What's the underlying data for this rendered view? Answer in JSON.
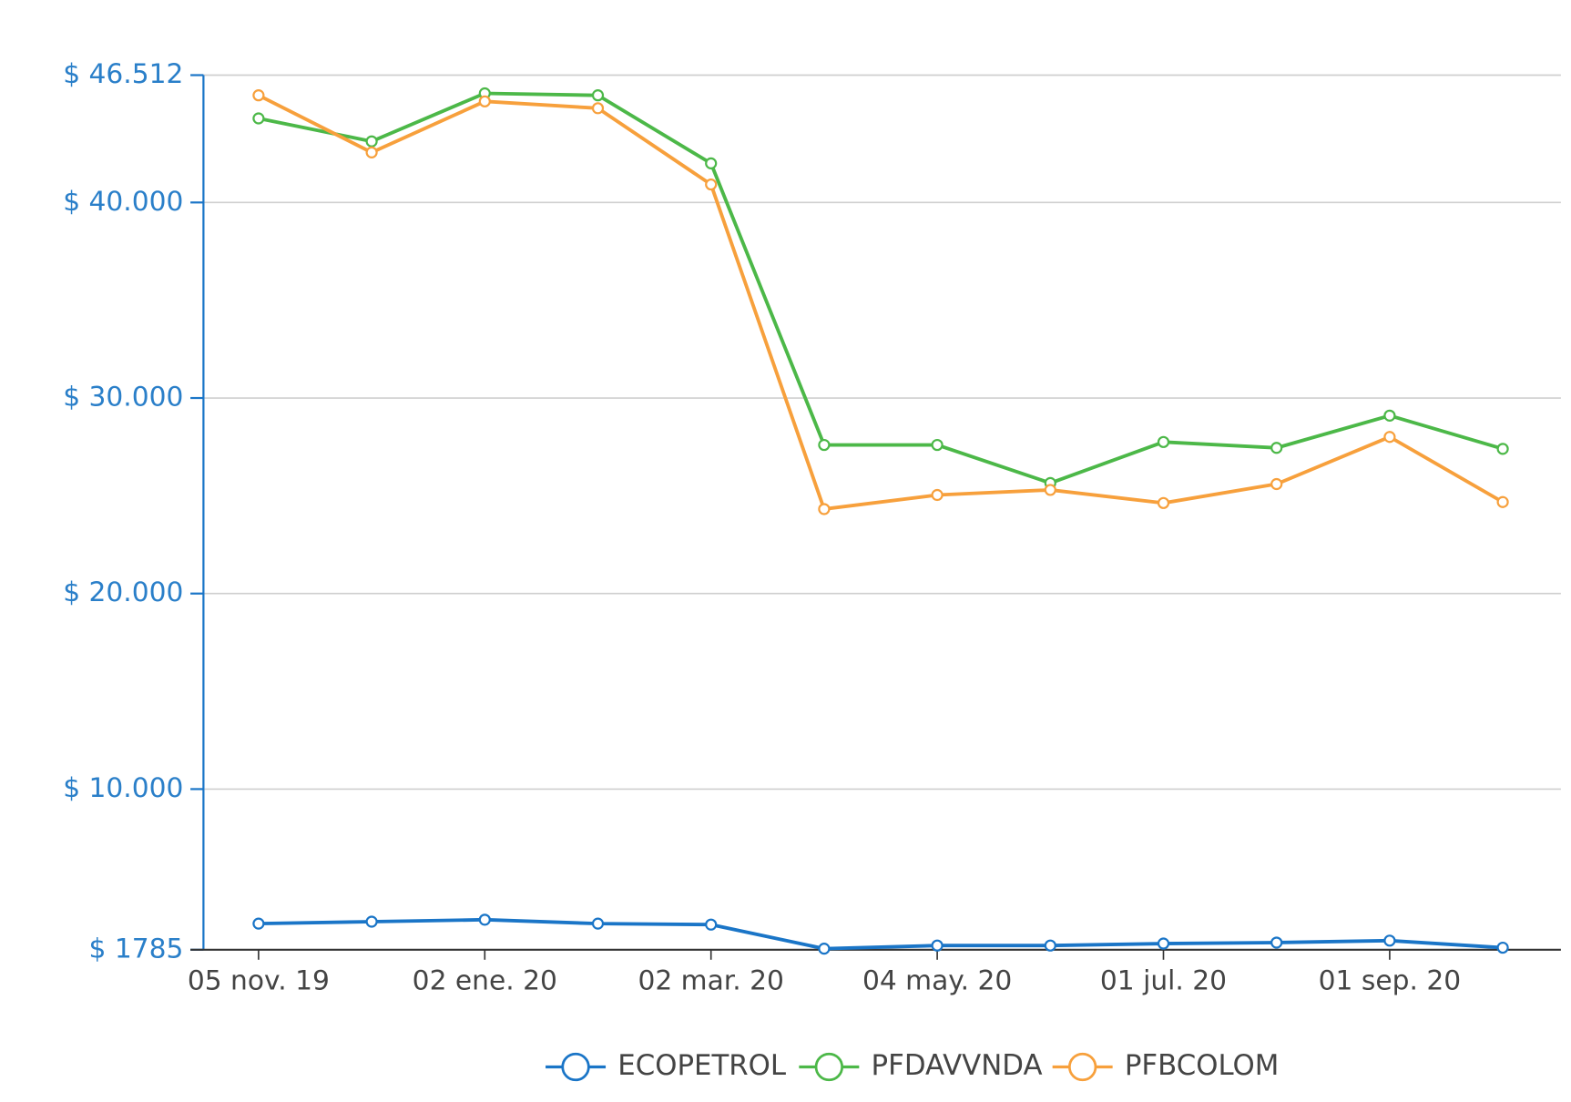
{
  "chart_data": {
    "type": "line",
    "categories": [
      "05 nov. 19",
      null,
      "02 ene. 20",
      null,
      "02 mar. 20",
      null,
      "04 may. 20",
      null,
      "01 jul. 20",
      null,
      "01 sep. 20",
      null
    ],
    "series": [
      {
        "name": "ECOPETROL",
        "color": "#1a75c7",
        "values": [
          3120,
          3220,
          3320,
          3120,
          3070,
          1840,
          2000,
          2000,
          2100,
          2150,
          2250,
          1890
        ]
      },
      {
        "name": "PFDAVVNDA",
        "color": "#4cb848",
        "values": [
          44300,
          43125,
          45580,
          45480,
          42000,
          27600,
          27600,
          25650,
          27750,
          27450,
          29100,
          27400
        ]
      },
      {
        "name": "PFBCOLOM",
        "color": "#f7a03c",
        "values": [
          45480,
          42560,
          45170,
          44820,
          40920,
          24320,
          25040,
          25300,
          24630,
          25600,
          28010,
          24680
        ]
      }
    ],
    "ylim": [
      1785,
      46512
    ],
    "yticks": [
      {
        "value": 1785,
        "label": "$ 1785"
      },
      {
        "value": 10000,
        "label": "$ 10.000"
      },
      {
        "value": 20000,
        "label": "$ 20.000"
      },
      {
        "value": 30000,
        "label": "$ 30.000"
      },
      {
        "value": 40000,
        "label": "$ 40.000"
      },
      {
        "value": 46512,
        "label": "$ 46.512"
      }
    ],
    "grid": true,
    "legend": "bottom"
  }
}
